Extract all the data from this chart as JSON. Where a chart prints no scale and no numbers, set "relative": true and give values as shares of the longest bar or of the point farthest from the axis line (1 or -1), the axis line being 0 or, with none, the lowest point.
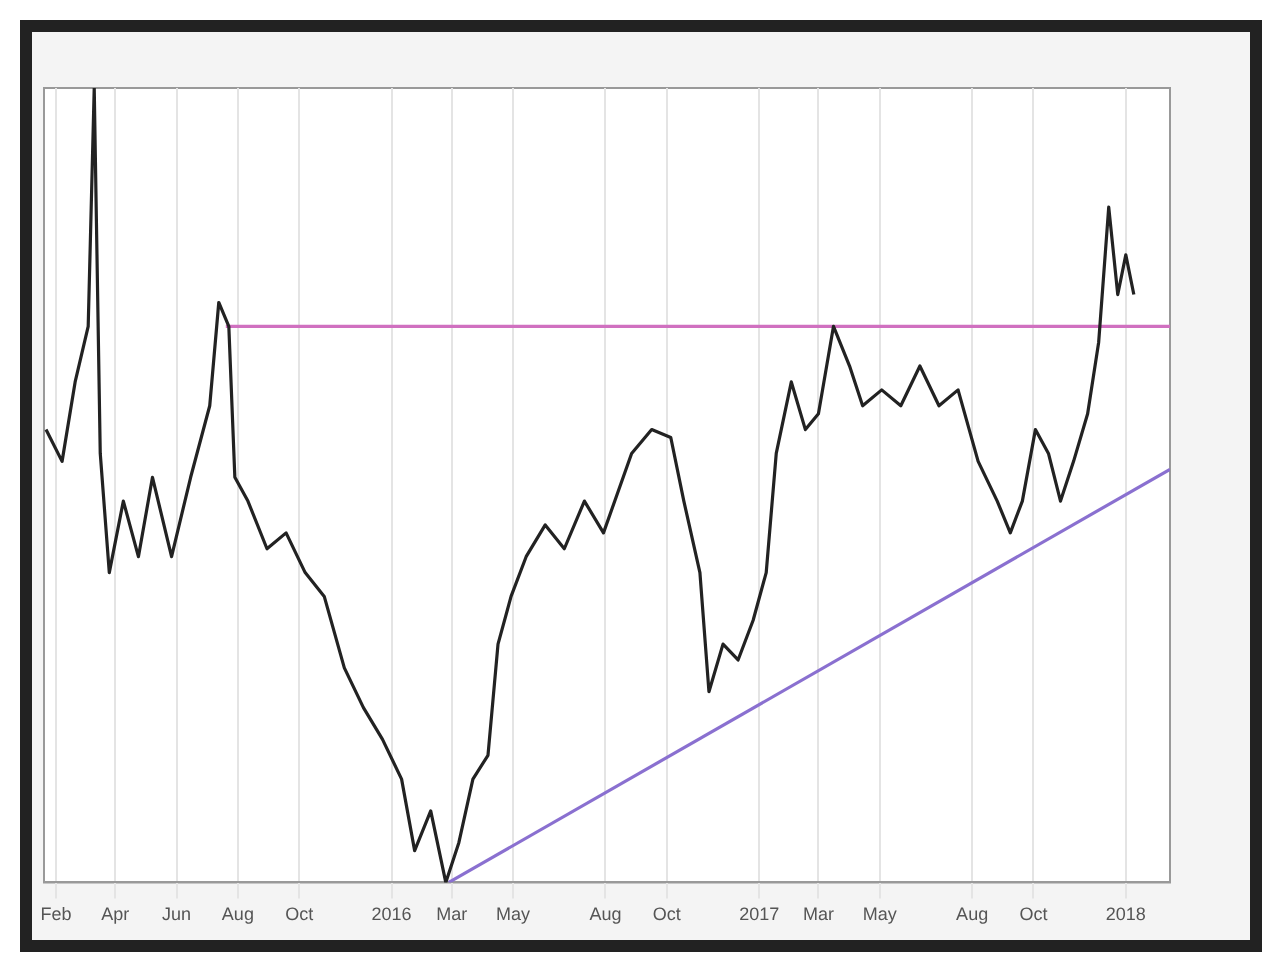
{
  "chart_data": {
    "type": "line",
    "relative": true,
    "legend": false,
    "grid": "x",
    "marker": "none",
    "line_style": "solid",
    "xlim": [
      "2015-01-20",
      "2018-02-14"
    ],
    "xticks": [
      {
        "value": "2015-02-01",
        "label": "Feb"
      },
      {
        "value": "2015-04-01",
        "label": "Apr"
      },
      {
        "value": "2015-06-01",
        "label": "Jun"
      },
      {
        "value": "2015-08-01",
        "label": "Aug"
      },
      {
        "value": "2015-10-01",
        "label": "Oct"
      },
      {
        "value": "2016-01-01",
        "label": "2016"
      },
      {
        "value": "2016-03-01",
        "label": "Mar"
      },
      {
        "value": "2016-05-01",
        "label": "May"
      },
      {
        "value": "2016-08-01",
        "label": "Aug"
      },
      {
        "value": "2016-10-01",
        "label": "Oct"
      },
      {
        "value": "2017-01-01",
        "label": "2017"
      },
      {
        "value": "2017-03-01",
        "label": "Mar"
      },
      {
        "value": "2017-05-01",
        "label": "May"
      },
      {
        "value": "2017-08-01",
        "label": "Aug"
      },
      {
        "value": "2017-10-01",
        "label": "Oct"
      },
      {
        "value": "2018-01-01",
        "label": "2018"
      }
    ],
    "series": [
      {
        "color": "#222222",
        "x": [
          "2015-01-22",
          "2015-02-07",
          "2015-02-20",
          "2015-03-05",
          "2015-03-11",
          "2015-03-17",
          "2015-03-26",
          "2015-04-09",
          "2015-04-24",
          "2015-05-08",
          "2015-05-27",
          "2015-06-15",
          "2015-07-04",
          "2015-07-13",
          "2015-07-23",
          "2015-07-29",
          "2015-08-11",
          "2015-08-30",
          "2015-09-18",
          "2015-10-07",
          "2015-10-26",
          "2015-11-15",
          "2015-12-04",
          "2015-12-23",
          "2016-01-11",
          "2016-01-24",
          "2016-02-09",
          "2016-02-24",
          "2016-03-08",
          "2016-03-22",
          "2016-04-06",
          "2016-04-16",
          "2016-04-29",
          "2016-05-14",
          "2016-06-02",
          "2016-06-21",
          "2016-07-11",
          "2016-07-30",
          "2016-08-27",
          "2016-09-16",
          "2016-10-05",
          "2016-10-18",
          "2016-11-03",
          "2016-11-12",
          "2016-11-26",
          "2016-12-11",
          "2016-12-26",
          "2017-01-08",
          "2017-01-18",
          "2017-02-02",
          "2017-02-16",
          "2017-03-01",
          "2017-03-16",
          "2017-04-01",
          "2017-04-14",
          "2017-05-03",
          "2017-05-22",
          "2017-06-10",
          "2017-06-29",
          "2017-07-18",
          "2017-08-07",
          "2017-08-26",
          "2017-09-08",
          "2017-09-20",
          "2017-10-03",
          "2017-10-16",
          "2017-10-28",
          "2017-11-10",
          "2017-11-24",
          "2017-12-05",
          "2017-12-15",
          "2017-12-24",
          "2018-01-01",
          "2018-01-09"
        ],
        "values": [
          0.57,
          0.53,
          0.63,
          0.7,
          1.0,
          0.54,
          0.39,
          0.48,
          0.41,
          0.51,
          0.41,
          0.51,
          0.6,
          0.73,
          0.7,
          0.51,
          0.48,
          0.42,
          0.44,
          0.39,
          0.36,
          0.27,
          0.22,
          0.18,
          0.13,
          0.04,
          0.09,
          0.0,
          0.05,
          0.13,
          0.16,
          0.3,
          0.36,
          0.41,
          0.45,
          0.42,
          0.48,
          0.44,
          0.54,
          0.57,
          0.56,
          0.48,
          0.39,
          0.24,
          0.3,
          0.28,
          0.33,
          0.39,
          0.54,
          0.63,
          0.57,
          0.59,
          0.7,
          0.65,
          0.6,
          0.62,
          0.6,
          0.65,
          0.6,
          0.62,
          0.53,
          0.48,
          0.44,
          0.48,
          0.57,
          0.54,
          0.48,
          0.53,
          0.59,
          0.68,
          0.85,
          0.74,
          0.79,
          0.74
        ]
      },
      {
        "color": "#d070c0",
        "x": [
          "2015-07-20",
          "2018-02-14"
        ],
        "values": [
          0.7,
          0.7
        ]
      },
      {
        "color": "#8a70d0",
        "x": [
          "2016-02-27",
          "2018-02-14"
        ],
        "values": [
          0.0,
          0.52
        ]
      }
    ]
  }
}
